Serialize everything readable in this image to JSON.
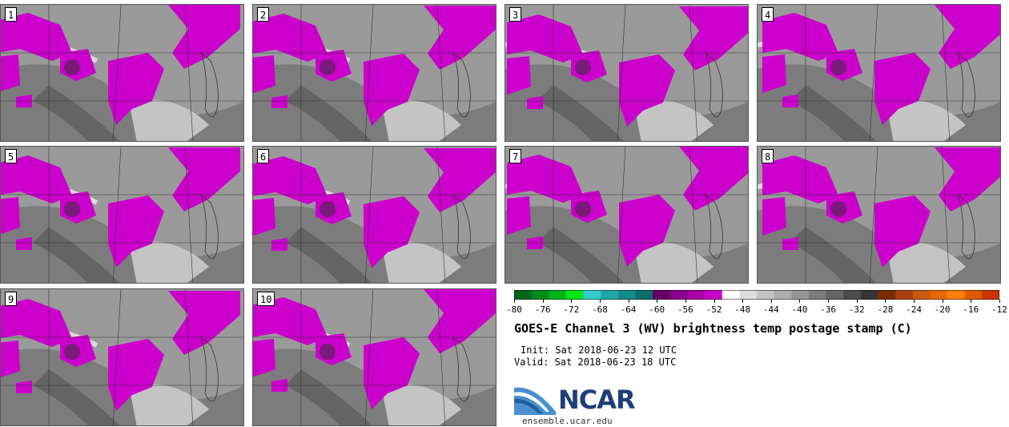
{
  "panels": [
    {
      "label": "1"
    },
    {
      "label": "2"
    },
    {
      "label": "3"
    },
    {
      "label": "4"
    },
    {
      "label": "5"
    },
    {
      "label": "6"
    },
    {
      "label": "7"
    },
    {
      "label": "8"
    },
    {
      "label": "9"
    },
    {
      "label": "10"
    }
  ],
  "colorbar": {
    "ticks": [
      "-80",
      "-76",
      "-72",
      "-68",
      "-64",
      "-60",
      "-56",
      "-52",
      "-48",
      "-44",
      "-40",
      "-36",
      "-32",
      "-28",
      "-24",
      "-20",
      "-16",
      "-12"
    ],
    "colors": [
      "#00661a",
      "#008a1a",
      "#00b31a",
      "#00e61a",
      "#33cccc",
      "#1fa8a8",
      "#128c8c",
      "#0a6e6e",
      "#660066",
      "#88008a",
      "#a600a6",
      "#cc00cc",
      "#ffffff",
      "#dcdcdc",
      "#c4c4c4",
      "#acacac",
      "#949494",
      "#7c7c7c",
      "#646464",
      "#4c4c4c",
      "#343434",
      "#7a2a00",
      "#a84010",
      "#cc5a10",
      "#e66a00",
      "#ff8000",
      "#e05a00",
      "#cc3300"
    ]
  },
  "title": "GOES-E Channel 3 (WV) brightness temp postage stamp (C)",
  "init": "Init: Sat 2018-06-23 12 UTC",
  "valid": "Valid: Sat 2018-06-23 18 UTC",
  "logo": {
    "text": "NCAR",
    "url": "ensemble.ucar.edu",
    "color": "#1f3f7a"
  },
  "colors": {
    "moist": "#cc00cc",
    "moist_dark": "#7a1a7a",
    "background_gray": "#8a8a8a"
  }
}
